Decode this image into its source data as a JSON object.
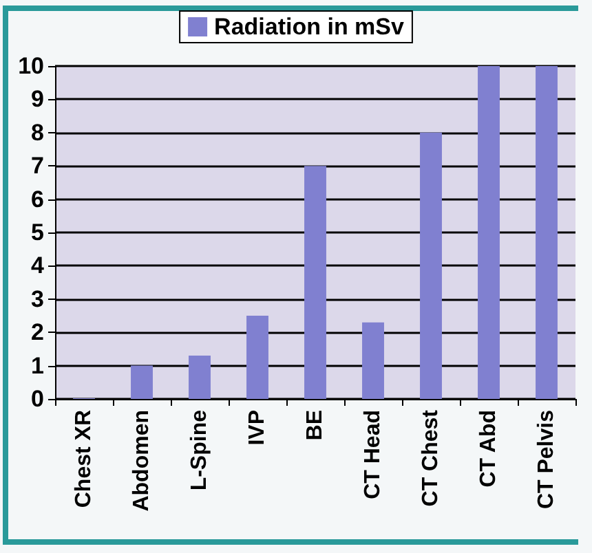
{
  "chart_data": {
    "type": "bar",
    "categories": [
      "Chest XR",
      "Abdomen",
      "L-Spine",
      "IVP",
      "BE",
      "CT Head",
      "CT Chest",
      "CT Abd",
      "CT Pelvis"
    ],
    "series": [
      {
        "name": "Radiation in mSv",
        "color": "#8080d0",
        "values": [
          0.02,
          1,
          1.3,
          2.5,
          7,
          2.3,
          8,
          10,
          10
        ]
      }
    ],
    "ylim": [
      0,
      10
    ],
    "yticks": [
      0,
      1,
      2,
      3,
      4,
      5,
      6,
      7,
      8,
      9,
      10
    ],
    "grid": "y",
    "legend": "top"
  }
}
